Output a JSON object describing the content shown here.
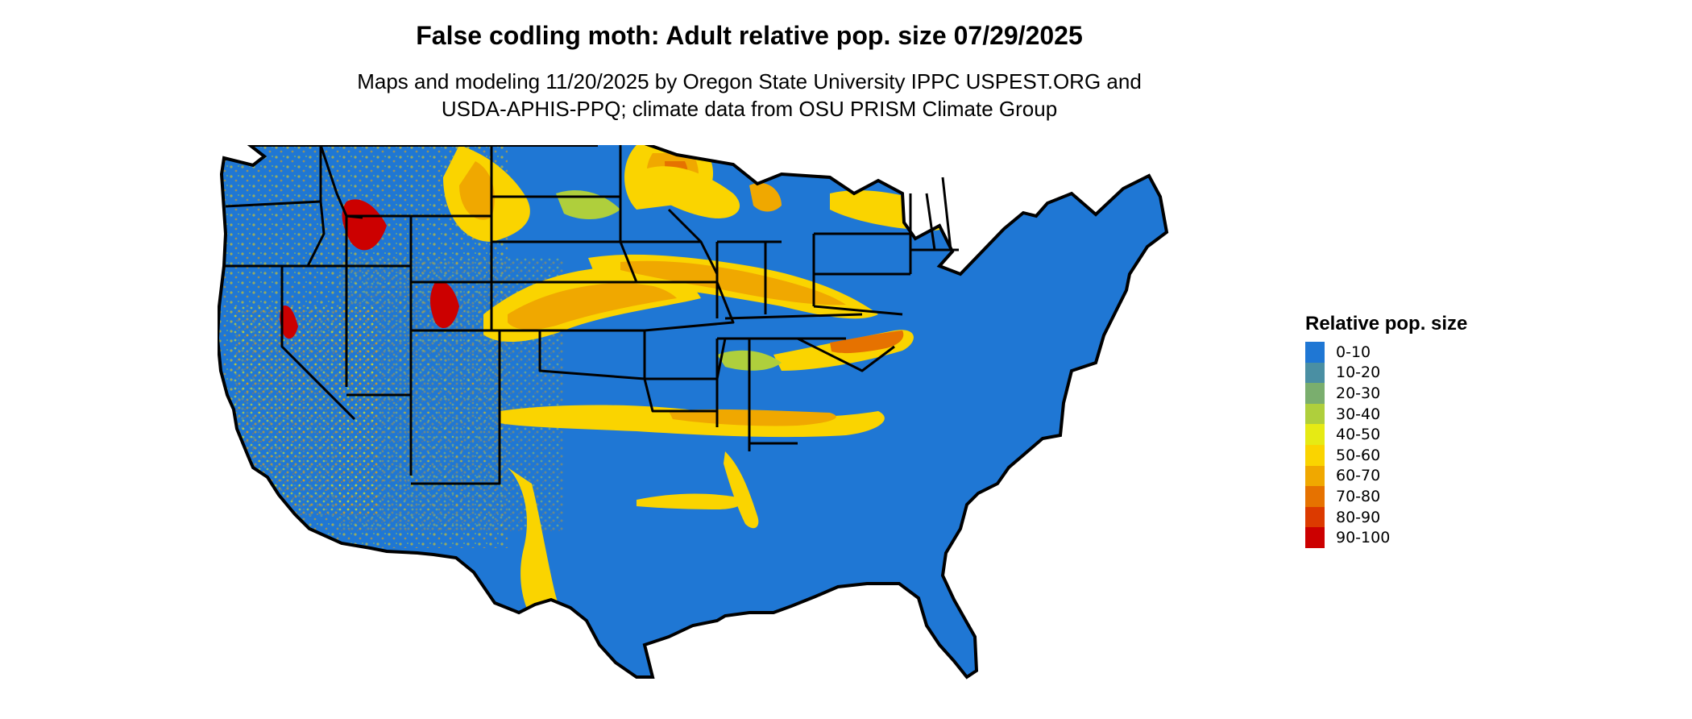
{
  "title": "False codling moth: Adult relative pop. size 07/29/2025",
  "subtitle_line1": "Maps and modeling 11/20/2025 by Oregon State University IPPC USPEST.ORG and",
  "subtitle_line2": "USDA-APHIS-PPQ; climate data from OSU PRISM Climate Group",
  "legend": {
    "title": "Relative pop. size",
    "items": [
      {
        "label": "0-10",
        "color": "#1f77d4"
      },
      {
        "label": "10-20",
        "color": "#4a8fa3"
      },
      {
        "label": "20-30",
        "color": "#7aae6e"
      },
      {
        "label": "30-40",
        "color": "#afcf3c"
      },
      {
        "label": "40-50",
        "color": "#e6ea14"
      },
      {
        "label": "50-60",
        "color": "#fad400"
      },
      {
        "label": "60-70",
        "color": "#f0a800"
      },
      {
        "label": "70-80",
        "color": "#e67200"
      },
      {
        "label": "80-90",
        "color": "#dc3a00"
      },
      {
        "label": "90-100",
        "color": "#cc0000"
      }
    ]
  },
  "map": {
    "base_color": "#1f77d4",
    "border_color": "#000000"
  }
}
